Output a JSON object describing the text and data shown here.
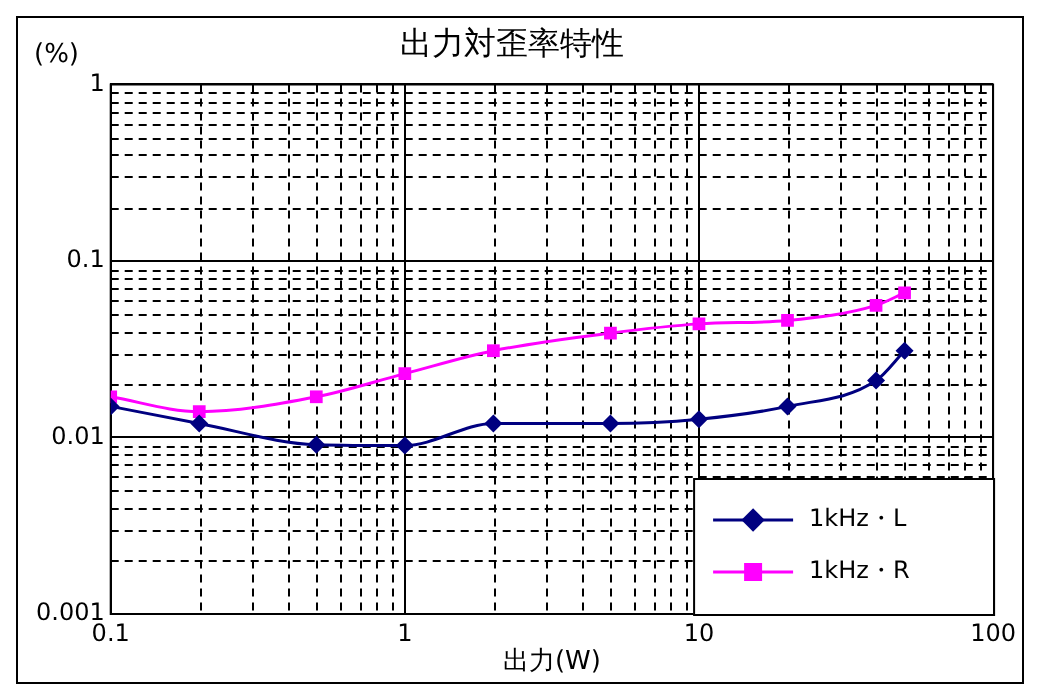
{
  "chart_data": {
    "type": "line",
    "title": "出力対歪率特性",
    "xlabel": "出力(W)",
    "ylabel": "(%)",
    "x": [
      0.1,
      0.2,
      0.5,
      1,
      2,
      5,
      10,
      20,
      40,
      50
    ],
    "series": [
      {
        "name": "1kHz・L",
        "color": "#000080",
        "marker": "diamond",
        "values": [
          0.015,
          0.012,
          0.0091,
          0.009,
          0.012,
          0.012,
          0.0127,
          0.015,
          0.021,
          0.031
        ]
      },
      {
        "name": "1kHz・R",
        "color": "#ff00ff",
        "marker": "square",
        "values": [
          0.017,
          0.014,
          0.017,
          0.023,
          0.031,
          0.039,
          0.044,
          0.046,
          0.056,
          0.066
        ]
      }
    ],
    "log": "xy",
    "xlim": [
      0.1,
      100
    ],
    "ylim": [
      0.001,
      1
    ],
    "xticks": [
      0.1,
      1,
      10,
      100
    ],
    "yticks": [
      0.001,
      0.01,
      0.1,
      1
    ],
    "grid": true,
    "legend": "bottom right",
    "line_style": "solid"
  }
}
